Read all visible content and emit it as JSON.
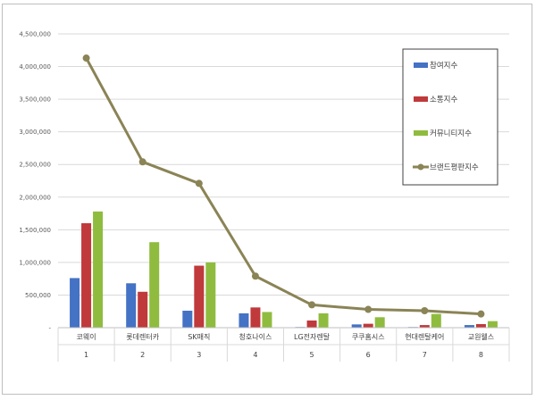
{
  "chart_data": {
    "type": "bar",
    "categories": [
      "코웨이",
      "롯데렌터카",
      "SK매직",
      "청호나이스",
      "LG전자렌탈",
      "쿠쿠홈시스",
      "현대렌탈케어",
      "교원웰스"
    ],
    "ranks": [
      "1",
      "2",
      "3",
      "4",
      "5",
      "6",
      "7",
      "8"
    ],
    "series": [
      {
        "name": "참여지수",
        "kind": "bar",
        "color": "#4472c4",
        "values": [
          760000,
          680000,
          260000,
          220000,
          10000,
          50000,
          10000,
          40000
        ]
      },
      {
        "name": "소통지수",
        "kind": "bar",
        "color": "#c0393b",
        "values": [
          1600000,
          550000,
          950000,
          310000,
          110000,
          60000,
          40000,
          55000
        ]
      },
      {
        "name": "커뮤니티지수",
        "kind": "bar",
        "color": "#8fbc3f",
        "values": [
          1780000,
          1310000,
          1000000,
          240000,
          220000,
          160000,
          210000,
          100000
        ]
      },
      {
        "name": "브랜드평판지수",
        "kind": "line",
        "color": "#8a8456",
        "values": [
          4130000,
          2540000,
          2210000,
          790000,
          350000,
          280000,
          260000,
          210000
        ]
      }
    ],
    "yticks": [
      "-",
      "500,000",
      "1,000,000",
      "1,500,000",
      "2,000,000",
      "2,500,000",
      "3,000,000",
      "3,500,000",
      "4,000,000",
      "4,500,000"
    ],
    "ylim": [
      0,
      4500000
    ],
    "grid": true,
    "legend": "top-right"
  }
}
